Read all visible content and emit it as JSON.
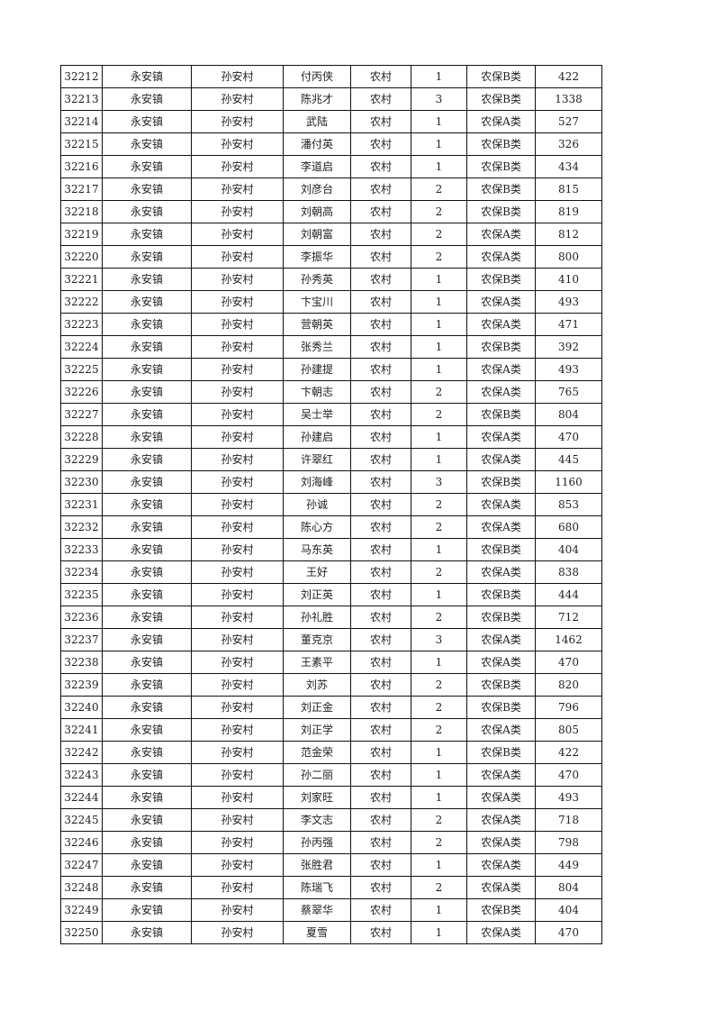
{
  "table": {
    "rows": [
      [
        "32212",
        "永安镇",
        "孙安村",
        "付丙侠",
        "农村",
        "1",
        "农保B类",
        "422"
      ],
      [
        "32213",
        "永安镇",
        "孙安村",
        "陈兆才",
        "农村",
        "3",
        "农保B类",
        "1338"
      ],
      [
        "32214",
        "永安镇",
        "孙安村",
        "武陆",
        "农村",
        "1",
        "农保A类",
        "527"
      ],
      [
        "32215",
        "永安镇",
        "孙安村",
        "潘付英",
        "农村",
        "1",
        "农保B类",
        "326"
      ],
      [
        "32216",
        "永安镇",
        "孙安村",
        "李道启",
        "农村",
        "1",
        "农保B类",
        "434"
      ],
      [
        "32217",
        "永安镇",
        "孙安村",
        "刘彦台",
        "农村",
        "2",
        "农保B类",
        "815"
      ],
      [
        "32218",
        "永安镇",
        "孙安村",
        "刘朝高",
        "农村",
        "2",
        "农保B类",
        "819"
      ],
      [
        "32219",
        "永安镇",
        "孙安村",
        "刘朝富",
        "农村",
        "2",
        "农保A类",
        "812"
      ],
      [
        "32220",
        "永安镇",
        "孙安村",
        "李振华",
        "农村",
        "2",
        "农保A类",
        "800"
      ],
      [
        "32221",
        "永安镇",
        "孙安村",
        "孙秀英",
        "农村",
        "1",
        "农保B类",
        "410"
      ],
      [
        "32222",
        "永安镇",
        "孙安村",
        "卞宝川",
        "农村",
        "1",
        "农保A类",
        "493"
      ],
      [
        "32223",
        "永安镇",
        "孙安村",
        "营朝英",
        "农村",
        "1",
        "农保A类",
        "471"
      ],
      [
        "32224",
        "永安镇",
        "孙安村",
        "张秀兰",
        "农村",
        "1",
        "农保B类",
        "392"
      ],
      [
        "32225",
        "永安镇",
        "孙安村",
        "孙建提",
        "农村",
        "1",
        "农保A类",
        "493"
      ],
      [
        "32226",
        "永安镇",
        "孙安村",
        "卞朝志",
        "农村",
        "2",
        "农保A类",
        "765"
      ],
      [
        "32227",
        "永安镇",
        "孙安村",
        "吴士举",
        "农村",
        "2",
        "农保B类",
        "804"
      ],
      [
        "32228",
        "永安镇",
        "孙安村",
        "孙建启",
        "农村",
        "1",
        "农保A类",
        "470"
      ],
      [
        "32229",
        "永安镇",
        "孙安村",
        "许翠红",
        "农村",
        "1",
        "农保A类",
        "445"
      ],
      [
        "32230",
        "永安镇",
        "孙安村",
        "刘海峰",
        "农村",
        "3",
        "农保B类",
        "1160"
      ],
      [
        "32231",
        "永安镇",
        "孙安村",
        "孙诚",
        "农村",
        "2",
        "农保A类",
        "853"
      ],
      [
        "32232",
        "永安镇",
        "孙安村",
        "陈心方",
        "农村",
        "2",
        "农保A类",
        "680"
      ],
      [
        "32233",
        "永安镇",
        "孙安村",
        "马东英",
        "农村",
        "1",
        "农保B类",
        "404"
      ],
      [
        "32234",
        "永安镇",
        "孙安村",
        "王好",
        "农村",
        "2",
        "农保A类",
        "838"
      ],
      [
        "32235",
        "永安镇",
        "孙安村",
        "刘正英",
        "农村",
        "1",
        "农保B类",
        "444"
      ],
      [
        "32236",
        "永安镇",
        "孙安村",
        "孙礼胜",
        "农村",
        "2",
        "农保B类",
        "712"
      ],
      [
        "32237",
        "永安镇",
        "孙安村",
        "董克京",
        "农村",
        "3",
        "农保A类",
        "1462"
      ],
      [
        "32238",
        "永安镇",
        "孙安村",
        "王素平",
        "农村",
        "1",
        "农保A类",
        "470"
      ],
      [
        "32239",
        "永安镇",
        "孙安村",
        "刘苏",
        "农村",
        "2",
        "农保B类",
        "820"
      ],
      [
        "32240",
        "永安镇",
        "孙安村",
        "刘正金",
        "农村",
        "2",
        "农保B类",
        "796"
      ],
      [
        "32241",
        "永安镇",
        "孙安村",
        "刘正学",
        "农村",
        "2",
        "农保A类",
        "805"
      ],
      [
        "32242",
        "永安镇",
        "孙安村",
        "范金荣",
        "农村",
        "1",
        "农保B类",
        "422"
      ],
      [
        "32243",
        "永安镇",
        "孙安村",
        "孙二丽",
        "农村",
        "1",
        "农保A类",
        "470"
      ],
      [
        "32244",
        "永安镇",
        "孙安村",
        "刘家旺",
        "农村",
        "1",
        "农保A类",
        "493"
      ],
      [
        "32245",
        "永安镇",
        "孙安村",
        "李文志",
        "农村",
        "2",
        "农保A类",
        "718"
      ],
      [
        "32246",
        "永安镇",
        "孙安村",
        "孙丙强",
        "农村",
        "2",
        "农保A类",
        "798"
      ],
      [
        "32247",
        "永安镇",
        "孙安村",
        "张胜君",
        "农村",
        "1",
        "农保A类",
        "449"
      ],
      [
        "32248",
        "永安镇",
        "孙安村",
        "陈瑞飞",
        "农村",
        "2",
        "农保A类",
        "804"
      ],
      [
        "32249",
        "永安镇",
        "孙安村",
        "蔡翠华",
        "农村",
        "1",
        "农保B类",
        "404"
      ],
      [
        "32250",
        "永安镇",
        "孙安村",
        "夏雪",
        "农村",
        "1",
        "农保A类",
        "470"
      ]
    ]
  }
}
